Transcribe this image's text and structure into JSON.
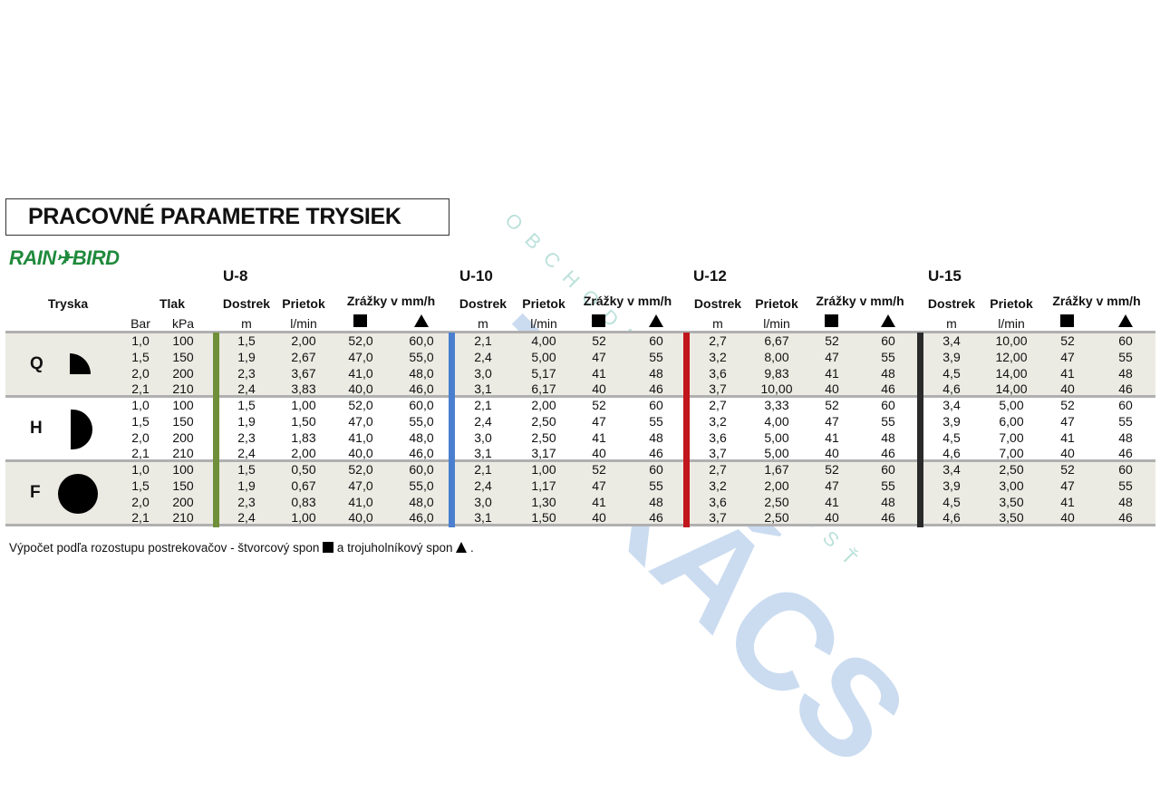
{
  "title": "PRACOVNÉ PARAMETRE TRYSIEK",
  "logo_text": "RAIN✈BIRD",
  "watermark": {
    "main": "TAKÁCS",
    "sub": "OBCHODNÁ SPOLOČNOSŤ"
  },
  "colors": {
    "u8": "#6f8f3a",
    "u10": "#4a7fd0",
    "u12": "#c0161c",
    "u15": "#2a2a2a",
    "band": "#ecebe3",
    "separator": "#b0b0b0",
    "logo": "#1f8a3c"
  },
  "headers": {
    "tryska": "Tryska",
    "tlak": "Tlak",
    "bar": "Bar",
    "kpa": "kPa",
    "dostrek": "Dostrek",
    "prietok": "Prietok",
    "zrazky": "Zrážky v mm/h",
    "unit_m": "m",
    "unit_lmin": "l/min",
    "square_icon": "square-spacing-icon",
    "triangle_icon": "triangle-spacing-icon"
  },
  "models": [
    "U-8",
    "U-10",
    "U-12",
    "U-15"
  ],
  "groups": [
    {
      "letter": "Q",
      "icon": "quarter-circle-icon",
      "rows": [
        {
          "cells": [
            "1,0",
            "100",
            "1,5",
            "2,00",
            "52,0",
            "60,0",
            "2,1",
            "4,00",
            "52",
            "60",
            "2,7",
            "6,67",
            "52",
            "60",
            "3,4",
            "10,00",
            "52",
            "60"
          ]
        },
        {
          "cells": [
            "1,5",
            "150",
            "1,9",
            "2,67",
            "47,0",
            "55,0",
            "2,4",
            "5,00",
            "47",
            "55",
            "3,2",
            "8,00",
            "47",
            "55",
            "3,9",
            "12,00",
            "47",
            "55"
          ]
        },
        {
          "cells": [
            "2,0",
            "200",
            "2,3",
            "3,67",
            "41,0",
            "48,0",
            "3,0",
            "5,17",
            "41",
            "48",
            "3,6",
            "9,83",
            "41",
            "48",
            "4,5",
            "14,00",
            "41",
            "48"
          ]
        },
        {
          "cells": [
            "2,1",
            "210",
            "2,4",
            "3,83",
            "40,0",
            "46,0",
            "3,1",
            "6,17",
            "40",
            "46",
            "3,7",
            "10,00",
            "40",
            "46",
            "4,6",
            "14,00",
            "40",
            "46"
          ]
        }
      ]
    },
    {
      "letter": "H",
      "icon": "half-circle-icon",
      "rows": [
        {
          "cells": [
            "1,0",
            "100",
            "1,5",
            "1,00",
            "52,0",
            "60,0",
            "2,1",
            "2,00",
            "52",
            "60",
            "2,7",
            "3,33",
            "52",
            "60",
            "3,4",
            "5,00",
            "52",
            "60"
          ]
        },
        {
          "cells": [
            "1,5",
            "150",
            "1,9",
            "1,50",
            "47,0",
            "55,0",
            "2,4",
            "2,50",
            "47",
            "55",
            "3,2",
            "4,00",
            "47",
            "55",
            "3,9",
            "6,00",
            "47",
            "55"
          ]
        },
        {
          "cells": [
            "2,0",
            "200",
            "2,3",
            "1,83",
            "41,0",
            "48,0",
            "3,0",
            "2,50",
            "41",
            "48",
            "3,6",
            "5,00",
            "41",
            "48",
            "4,5",
            "7,00",
            "41",
            "48"
          ]
        },
        {
          "cells": [
            "2,1",
            "210",
            "2,4",
            "2,00",
            "40,0",
            "46,0",
            "3,1",
            "3,17",
            "40",
            "46",
            "3,7",
            "5,00",
            "40",
            "46",
            "4,6",
            "7,00",
            "40",
            "46"
          ]
        }
      ]
    },
    {
      "letter": "F",
      "icon": "full-circle-icon",
      "rows": [
        {
          "cells": [
            "1,0",
            "100",
            "1,5",
            "0,50",
            "52,0",
            "60,0",
            "2,1",
            "1,00",
            "52",
            "60",
            "2,7",
            "1,67",
            "52",
            "60",
            "3,4",
            "2,50",
            "52",
            "60"
          ]
        },
        {
          "cells": [
            "1,5",
            "150",
            "1,9",
            "0,67",
            "47,0",
            "55,0",
            "2,4",
            "1,17",
            "47",
            "55",
            "3,2",
            "2,00",
            "47",
            "55",
            "3,9",
            "3,00",
            "47",
            "55"
          ]
        },
        {
          "cells": [
            "2,0",
            "200",
            "2,3",
            "0,83",
            "41,0",
            "48,0",
            "3,0",
            "1,30",
            "41",
            "48",
            "3,6",
            "2,50",
            "41",
            "48",
            "4,5",
            "3,50",
            "41",
            "48"
          ]
        },
        {
          "cells": [
            "2,1",
            "210",
            "2,4",
            "1,00",
            "40,0",
            "46,0",
            "3,1",
            "1,50",
            "40",
            "46",
            "3,7",
            "2,50",
            "40",
            "46",
            "4,6",
            "3,50",
            "40",
            "46"
          ]
        }
      ]
    }
  ],
  "footnote": {
    "part1": "Výpočet podľa rozostupu postrekovačov - štvorcový spon",
    "part2": "a trojuholníkový spon",
    "part3": "."
  }
}
